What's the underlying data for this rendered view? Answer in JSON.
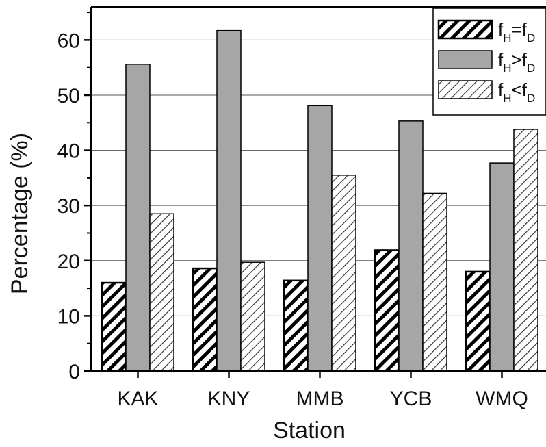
{
  "chart_data": {
    "type": "bar",
    "title": "",
    "xlabel": "Station",
    "ylabel": "Percentage (%)",
    "categories": [
      "KAK",
      "KNY",
      "MMB",
      "YCB",
      "WMQ"
    ],
    "ylim": [
      0,
      66
    ],
    "yticks": [
      0,
      10,
      20,
      30,
      40,
      50,
      60
    ],
    "grid": true,
    "legend_position": "top-right",
    "series": [
      {
        "name": "fH=fD",
        "legend": {
          "base": "f",
          "sub1": "H",
          "op": "=",
          "base2": "f",
          "sub2": "D"
        },
        "pattern": "dense-hatch",
        "values": [
          16.0,
          18.6,
          16.4,
          21.9,
          18.0
        ]
      },
      {
        "name": "fH>fD",
        "legend": {
          "base": "f",
          "sub1": "H",
          "op": ">",
          "base2": "f",
          "sub2": "D"
        },
        "pattern": "gray",
        "color": "#a6a6a6",
        "values": [
          55.6,
          61.7,
          48.1,
          45.3,
          37.7
        ]
      },
      {
        "name": "fH<fD",
        "legend": {
          "base": "f",
          "sub1": "H",
          "op": "<",
          "base2": "f",
          "sub2": "D"
        },
        "pattern": "light-hatch",
        "values": [
          28.5,
          19.7,
          35.5,
          32.2,
          43.8
        ]
      }
    ]
  }
}
